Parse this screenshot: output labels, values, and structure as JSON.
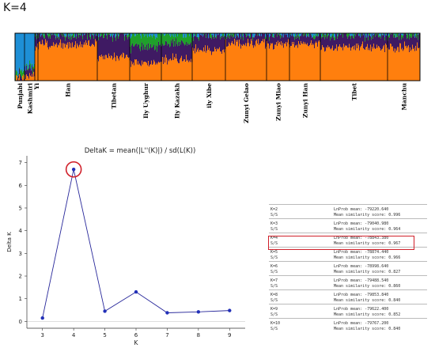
{
  "page_title": "K=4",
  "colors": {
    "orange": "#ff7f0e",
    "purple": "#3f1a63",
    "green": "#1fa02b",
    "blue": "#1e8fd6",
    "highlight": "#d0202a",
    "line": "#27279a"
  },
  "chart_data": [
    {
      "type": "stacked-bar",
      "k": 4,
      "categories": [
        "Punjabi",
        "Kashmiri",
        "Yi",
        "Han",
        "Tibetan",
        "Ily Uyghur",
        "Ily Kazakh",
        "ily Xibe",
        "Zunyi Gelao",
        "Zunyi Miao",
        "Zunyi Han",
        "Tibet",
        "Manchu"
      ],
      "series_colors": [
        "#1e8fd6",
        "#1fa02b",
        "#3f1a63",
        "#ff7f0e"
      ],
      "group_proportions": [
        [
          0.8,
          0.1,
          0.05,
          0.05
        ],
        [
          0.7,
          0.05,
          0.15,
          0.1
        ],
        [
          0.02,
          0.02,
          0.25,
          0.71
        ],
        [
          0.01,
          0.03,
          0.2,
          0.76
        ],
        [
          0.01,
          0.02,
          0.45,
          0.52
        ],
        [
          0.02,
          0.25,
          0.35,
          0.38
        ],
        [
          0.02,
          0.18,
          0.35,
          0.45
        ],
        [
          0.01,
          0.03,
          0.3,
          0.66
        ],
        [
          0.01,
          0.01,
          0.18,
          0.8
        ],
        [
          0.01,
          0.01,
          0.2,
          0.78
        ],
        [
          0.01,
          0.01,
          0.18,
          0.8
        ],
        [
          0.01,
          0.02,
          0.25,
          0.72
        ],
        [
          0.01,
          0.02,
          0.25,
          0.72
        ]
      ]
    },
    {
      "type": "line",
      "title": "DeltaK = mean(|L''(K)|) / sd(L(K))",
      "xlabel": "K",
      "ylabel": "Delta K",
      "x": [
        3,
        4,
        5,
        6,
        7,
        8,
        9
      ],
      "y": [
        0.15,
        6.7,
        0.45,
        1.3,
        0.38,
        0.42,
        0.48
      ],
      "xlim": [
        2.5,
        9.5
      ],
      "ylim": [
        -0.3,
        7.3
      ],
      "yticks": [
        0,
        1,
        2,
        3,
        4,
        5,
        6,
        7
      ],
      "xticks": [
        3,
        4,
        5,
        6,
        7,
        8,
        9
      ],
      "highlight_x": 4
    }
  ],
  "k_table": [
    {
      "k": "K=2",
      "lnprob": "LnProb mean: -79220.640",
      "ss": "S/S",
      "sim": "Mean similarity score: 0.996"
    },
    {
      "k": "K=3",
      "lnprob": "LnProb mean: -79040.980",
      "ss": "S/S",
      "sim": "Mean similarity score: 0.964"
    },
    {
      "k": "K=4",
      "lnprob": "LnProb mean: -78843.380",
      "ss": "S/S",
      "sim": "Mean similarity score: 0.967"
    },
    {
      "k": "K=5",
      "lnprob": "LnProb mean: -78874.440",
      "ss": "S/S",
      "sim": "Mean similarity score: 0.966"
    },
    {
      "k": "K=6",
      "lnprob": "LnProb mean: -78998.640",
      "ss": "S/S",
      "sim": "Mean similarity score: 0.827"
    },
    {
      "k": "K=7",
      "lnprob": "LnProb mean: -79488.540",
      "ss": "S/S",
      "sim": "Mean similarity score: 0.860"
    },
    {
      "k": "K=8",
      "lnprob": "LnProb mean: -79853.840",
      "ss": "S/S",
      "sim": "Mean similarity score: 0.840"
    },
    {
      "k": "K=9",
      "lnprob": "LnProb mean: -79622.400",
      "ss": "S/S",
      "sim": "Mean similarity score: 0.852"
    },
    {
      "k": "K=10",
      "lnprob": "LnProb mean: -79767.200",
      "ss": "S/S",
      "sim": "Mean similarity score: 0.840"
    }
  ],
  "highlight_k": "K=4"
}
